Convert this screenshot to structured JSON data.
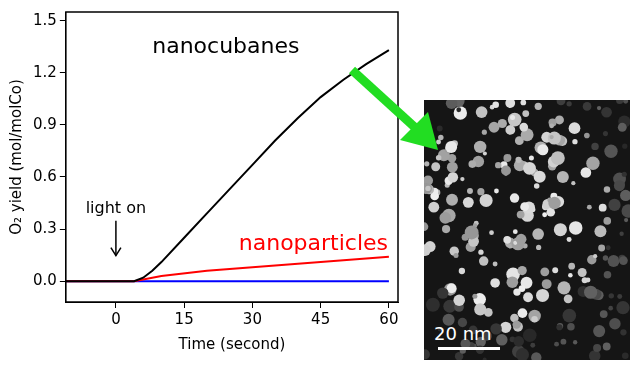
{
  "chart_data": {
    "type": "line",
    "x_label": "Time (second)",
    "y_label": "O₂ yield (mol/molCo)",
    "xlim": [
      -11,
      62
    ],
    "xticks": [
      0,
      15,
      30,
      45,
      60
    ],
    "ylim": [
      -0.12,
      1.55
    ],
    "yticks": [
      {
        "value": 0,
        "label": "0.0"
      },
      {
        "value": 0.3,
        "label": "0.3"
      },
      {
        "value": 0.6,
        "label": "0.6"
      },
      {
        "value": 0.9,
        "label": "0.9"
      },
      {
        "value": 1.2,
        "label": "1.2"
      },
      {
        "value": 1.5,
        "label": "1.5"
      }
    ],
    "grid": false,
    "series": [
      {
        "name": "nanocubanes",
        "color": "#000000",
        "x": [
          -11,
          0,
          4,
          6,
          8,
          10,
          15,
          20,
          25,
          30,
          35,
          40,
          45,
          50,
          55,
          60
        ],
        "values": [
          0,
          0,
          0,
          0.02,
          0.06,
          0.11,
          0.25,
          0.39,
          0.53,
          0.67,
          0.81,
          0.94,
          1.06,
          1.16,
          1.25,
          1.33
        ]
      },
      {
        "name": "nanoparticles",
        "color": "#ff0000",
        "x": [
          -11,
          0,
          4,
          10,
          20,
          30,
          40,
          50,
          60
        ],
        "values": [
          0,
          0,
          0,
          0.03,
          0.06,
          0.08,
          0.1,
          0.12,
          0.14
        ]
      },
      {
        "color": "#0000ff",
        "x": [
          -11,
          0,
          60
        ],
        "values": [
          0,
          0,
          0
        ]
      }
    ],
    "annotations": [
      {
        "text": "light on",
        "x": 0
      }
    ]
  },
  "image": {
    "scale_bar": "20 nm"
  }
}
